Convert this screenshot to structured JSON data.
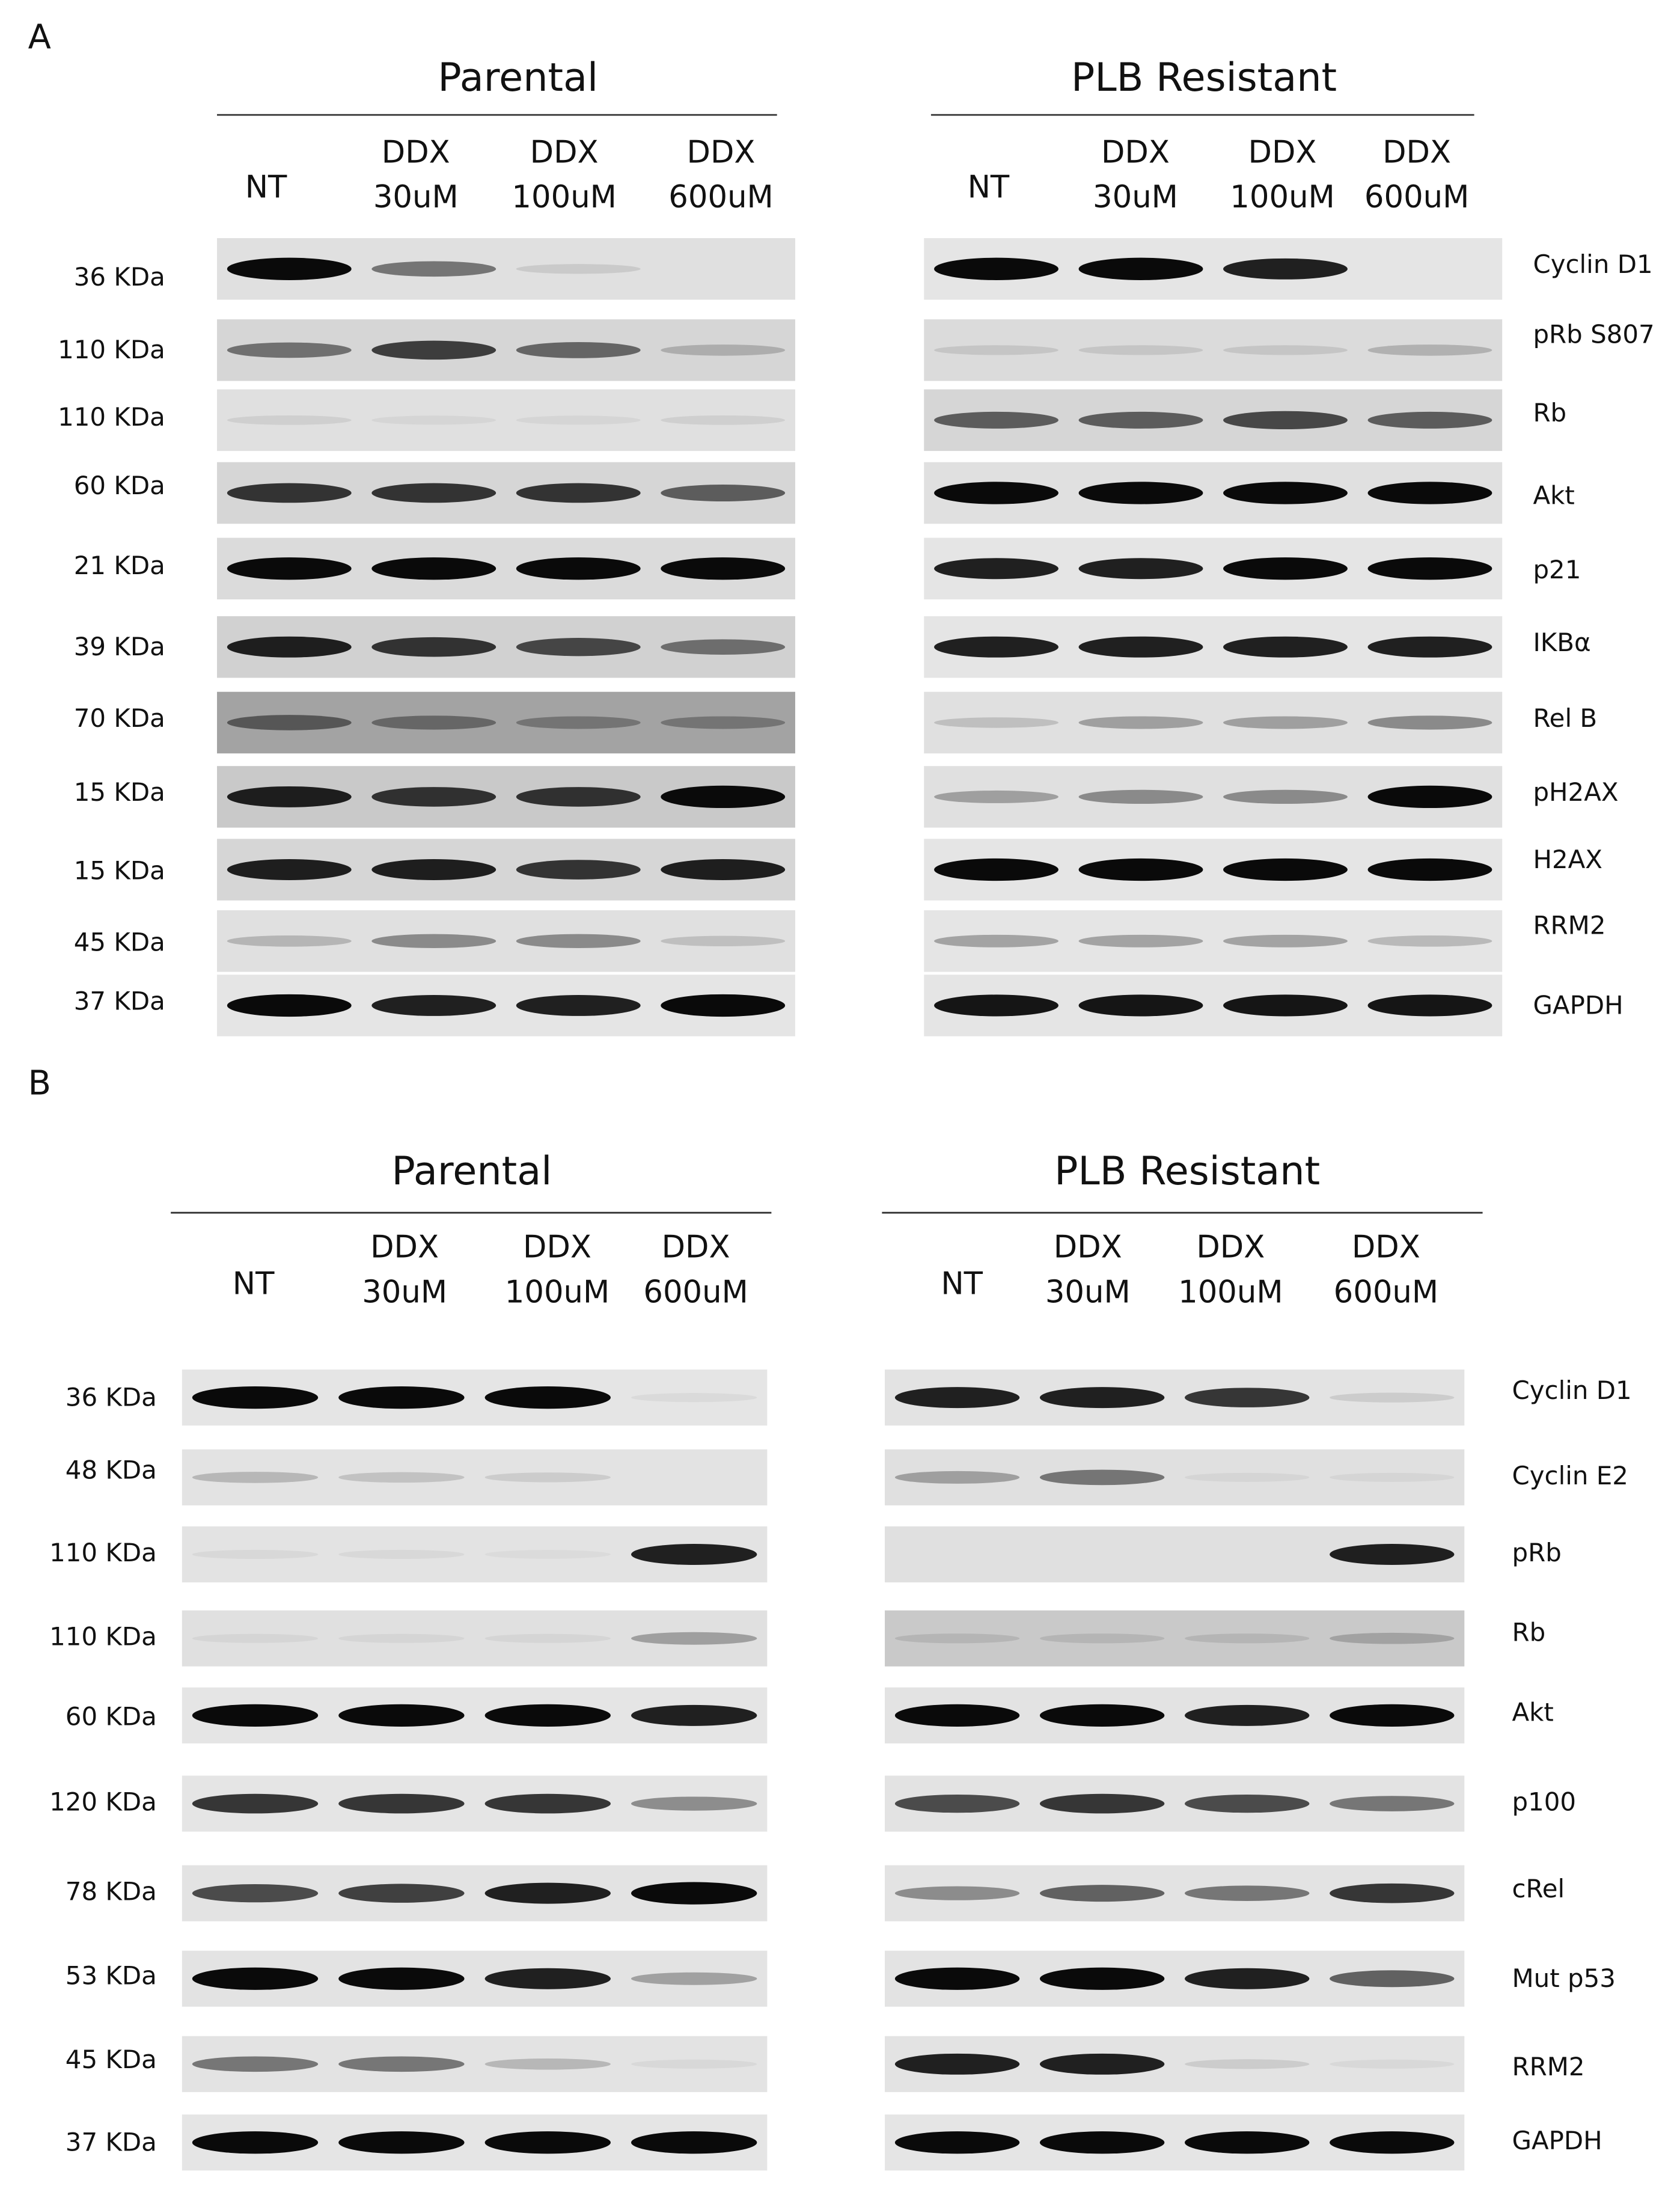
{
  "panels": [
    {
      "label": "A",
      "groups": [
        {
          "title": "Parental",
          "lanes": [
            [
              "NT"
            ],
            [
              "DDX",
              "30uM"
            ],
            [
              "DDX",
              "100uM"
            ],
            [
              "DDX",
              "600uM"
            ]
          ]
        },
        {
          "title": "PLB Resistant",
          "lanes": [
            [
              "NT"
            ],
            [
              "DDX",
              "30uM"
            ],
            [
              "DDX",
              "100uM"
            ],
            [
              "DDX",
              "600uM"
            ]
          ]
        }
      ],
      "kda": [
        "36 KDa",
        "110 KDa",
        "110 KDa",
        "60 KDa",
        "21 KDa",
        "39 KDa",
        "70 KDa",
        "15 KDa",
        "15 KDa",
        "45 KDa",
        "37 KDa"
      ],
      "proteins": [
        "Cyclin D1",
        "pRb S807",
        "Rb",
        "Akt",
        "p21",
        "IKBα",
        "Rel B",
        "pH2AX",
        "H2AX",
        "RRM2",
        "GAPDH"
      ]
    },
    {
      "label": "B",
      "groups": [
        {
          "title": "Parental",
          "lanes": [
            [
              "NT"
            ],
            [
              "DDX",
              "30uM"
            ],
            [
              "DDX",
              "100uM"
            ],
            [
              "DDX",
              "600uM"
            ]
          ]
        },
        {
          "title": "PLB Resistant",
          "lanes": [
            [
              "NT"
            ],
            [
              "DDX",
              "30uM"
            ],
            [
              "DDX",
              "100uM"
            ],
            [
              "DDX",
              "600uM"
            ]
          ]
        }
      ],
      "kda": [
        "36 KDa",
        "48 KDa",
        "110 KDa",
        "110 KDa",
        "60 KDa",
        "120 KDa",
        "78 KDa",
        "53 KDa",
        "45 KDa",
        "37 KDa"
      ],
      "proteins": [
        "Cyclin D1",
        "Cyclin E2",
        "pRb",
        "Rb",
        "Akt",
        "p100",
        "cRel",
        "Mut p53",
        "RRM2",
        "GAPDH"
      ]
    }
  ]
}
